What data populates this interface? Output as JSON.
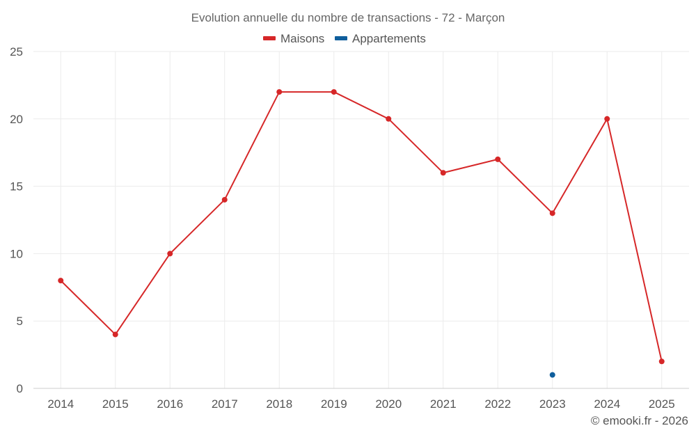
{
  "chart_data": {
    "type": "line",
    "title": "Evolution annuelle du nombre de transactions - 72 - Marçon",
    "categories": [
      "2014",
      "2015",
      "2016",
      "2017",
      "2018",
      "2019",
      "2020",
      "2021",
      "2022",
      "2023",
      "2024",
      "2025"
    ],
    "series": [
      {
        "name": "Maisons",
        "color": "#d62728",
        "values": [
          8,
          4,
          10,
          14,
          22,
          22,
          20,
          16,
          17,
          13,
          20,
          2
        ]
      },
      {
        "name": "Appartements",
        "color": "#0f5e9c",
        "values": [
          null,
          null,
          null,
          null,
          null,
          null,
          null,
          null,
          null,
          1,
          null,
          null
        ]
      }
    ],
    "ylim": [
      0,
      25
    ],
    "yticks": [
      0,
      5,
      10,
      15,
      20,
      25
    ],
    "xlabel": "",
    "ylabel": "",
    "grid": true,
    "legend": "top-center"
  },
  "credit": "© emooki.fr - 2026"
}
